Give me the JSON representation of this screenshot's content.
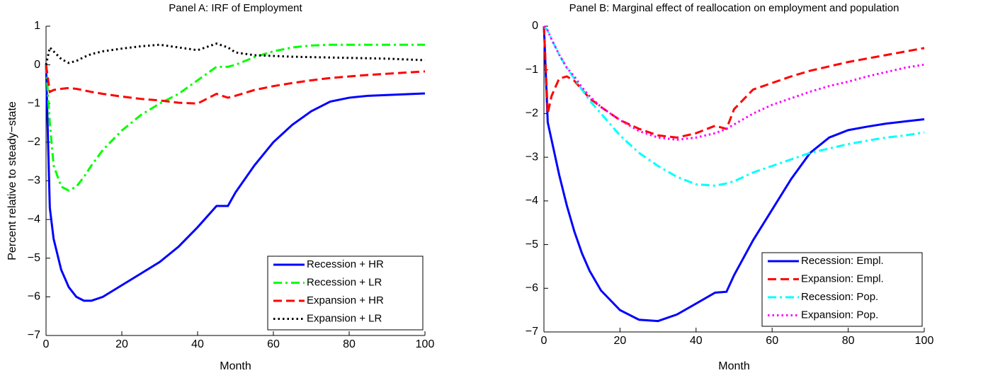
{
  "chart_data": [
    {
      "type": "line",
      "title": "Panel A: IRF of Employment",
      "xlabel": "Month",
      "ylabel": "Percent relative to steady−state",
      "x": [
        0,
        1,
        2,
        4,
        6,
        8,
        10,
        12,
        15,
        20,
        25,
        30,
        35,
        40,
        45,
        48,
        50,
        55,
        60,
        65,
        70,
        75,
        80,
        85,
        90,
        95,
        100
      ],
      "series": [
        {
          "name": "Recession + HR",
          "color": "#0000ff",
          "style": "solid",
          "values": [
            0,
            -3.7,
            -4.5,
            -5.3,
            -5.75,
            -6.0,
            -6.1,
            -6.1,
            -6.0,
            -5.7,
            -5.4,
            -5.1,
            -4.7,
            -4.2,
            -3.65,
            -3.65,
            -3.3,
            -2.6,
            -2.0,
            -1.55,
            -1.2,
            -0.95,
            -0.85,
            -0.8,
            -0.78,
            -0.76,
            -0.74
          ]
        },
        {
          "name": "Recession + LR",
          "color": "#00ff00",
          "style": "dashdot",
          "values": [
            0,
            -1.5,
            -2.6,
            -3.15,
            -3.25,
            -3.15,
            -2.9,
            -2.6,
            -2.2,
            -1.7,
            -1.3,
            -1.0,
            -0.75,
            -0.4,
            -0.05,
            -0.05,
            0.0,
            0.2,
            0.35,
            0.45,
            0.5,
            0.52,
            0.52,
            0.52,
            0.52,
            0.52,
            0.52
          ]
        },
        {
          "name": "Expansion + HR",
          "color": "#ff0000",
          "style": "dashed",
          "values": [
            0,
            -0.7,
            -0.65,
            -0.62,
            -0.6,
            -0.62,
            -0.66,
            -0.7,
            -0.75,
            -0.82,
            -0.88,
            -0.92,
            -0.98,
            -1.0,
            -0.75,
            -0.85,
            -0.8,
            -0.65,
            -0.55,
            -0.47,
            -0.4,
            -0.34,
            -0.3,
            -0.26,
            -0.23,
            -0.2,
            -0.17
          ]
        },
        {
          "name": "Expansion + LR",
          "color": "#000000",
          "style": "dotted",
          "values": [
            0,
            0.45,
            0.35,
            0.15,
            0.05,
            0.1,
            0.2,
            0.28,
            0.35,
            0.42,
            0.48,
            0.52,
            0.45,
            0.38,
            0.55,
            0.45,
            0.32,
            0.25,
            0.23,
            0.21,
            0.2,
            0.19,
            0.18,
            0.17,
            0.16,
            0.14,
            0.12
          ]
        }
      ],
      "xlim": [
        0,
        100
      ],
      "xticks": [
        0,
        20,
        40,
        60,
        80,
        100
      ],
      "ylim": [
        -7,
        1
      ],
      "yticks": [
        {
          "value": -7,
          "label": "−7"
        },
        {
          "value": -6,
          "label": "−6"
        },
        {
          "value": -5,
          "label": "−5"
        },
        {
          "value": -4,
          "label": "−4"
        },
        {
          "value": -3,
          "label": "−3"
        },
        {
          "value": -2,
          "label": "−2"
        },
        {
          "value": -1,
          "label": "−1"
        },
        0,
        1
      ],
      "legend": "lower right"
    },
    {
      "type": "line",
      "title": "Panel B: Marginal effect of reallocation on employment and population",
      "xlabel": "Month",
      "x": [
        0,
        1,
        2,
        4,
        6,
        8,
        10,
        12,
        15,
        20,
        25,
        30,
        35,
        40,
        45,
        48,
        50,
        55,
        60,
        65,
        70,
        75,
        80,
        85,
        90,
        95,
        100
      ],
      "series": [
        {
          "name": "Recession: Empl.",
          "color": "#0000ff",
          "style": "solid",
          "values": [
            0,
            -2.2,
            -2.6,
            -3.4,
            -4.1,
            -4.7,
            -5.2,
            -5.6,
            -6.05,
            -6.5,
            -6.72,
            -6.75,
            -6.6,
            -6.35,
            -6.1,
            -6.08,
            -5.7,
            -4.9,
            -4.2,
            -3.5,
            -2.9,
            -2.55,
            -2.38,
            -2.3,
            -2.23,
            -2.18,
            -2.13
          ]
        },
        {
          "name": "Expansion: Empl.",
          "color": "#ff0000",
          "style": "dashed",
          "values": [
            0,
            -2.0,
            -1.6,
            -1.2,
            -1.15,
            -1.25,
            -1.45,
            -1.65,
            -1.85,
            -2.15,
            -2.35,
            -2.5,
            -2.55,
            -2.45,
            -2.28,
            -2.35,
            -1.9,
            -1.45,
            -1.3,
            -1.15,
            -1.02,
            -0.92,
            -0.82,
            -0.74,
            -0.66,
            -0.58,
            -0.5
          ]
        },
        {
          "name": "Recession: Pop.",
          "color": "#00ffff",
          "style": "dashdot",
          "values": [
            0,
            -0.1,
            -0.3,
            -0.65,
            -0.95,
            -1.2,
            -1.45,
            -1.7,
            -2.0,
            -2.5,
            -2.9,
            -3.2,
            -3.45,
            -3.62,
            -3.65,
            -3.6,
            -3.55,
            -3.35,
            -3.2,
            -3.05,
            -2.9,
            -2.8,
            -2.7,
            -2.62,
            -2.55,
            -2.5,
            -2.43
          ]
        },
        {
          "name": "Expansion: Pop.",
          "color": "#ff00ff",
          "style": "dotted",
          "values": [
            0,
            -0.1,
            -0.3,
            -0.65,
            -0.95,
            -1.15,
            -1.4,
            -1.6,
            -1.85,
            -2.15,
            -2.4,
            -2.55,
            -2.6,
            -2.55,
            -2.45,
            -2.35,
            -2.25,
            -2.0,
            -1.8,
            -1.65,
            -1.5,
            -1.37,
            -1.27,
            -1.15,
            -1.05,
            -0.95,
            -0.88
          ]
        }
      ],
      "xlim": [
        0,
        100
      ],
      "xticks": [
        0,
        20,
        40,
        60,
        80,
        100
      ],
      "ylim": [
        -7,
        0
      ],
      "yticks": [
        {
          "value": -7,
          "label": "−7"
        },
        {
          "value": -6,
          "label": "−6"
        },
        {
          "value": -5,
          "label": "−5"
        },
        {
          "value": -4,
          "label": "−4"
        },
        {
          "value": -3,
          "label": "−3"
        },
        {
          "value": -2,
          "label": "−2"
        },
        {
          "value": -1,
          "label": "−1"
        },
        0
      ],
      "legend": "lower right"
    }
  ]
}
